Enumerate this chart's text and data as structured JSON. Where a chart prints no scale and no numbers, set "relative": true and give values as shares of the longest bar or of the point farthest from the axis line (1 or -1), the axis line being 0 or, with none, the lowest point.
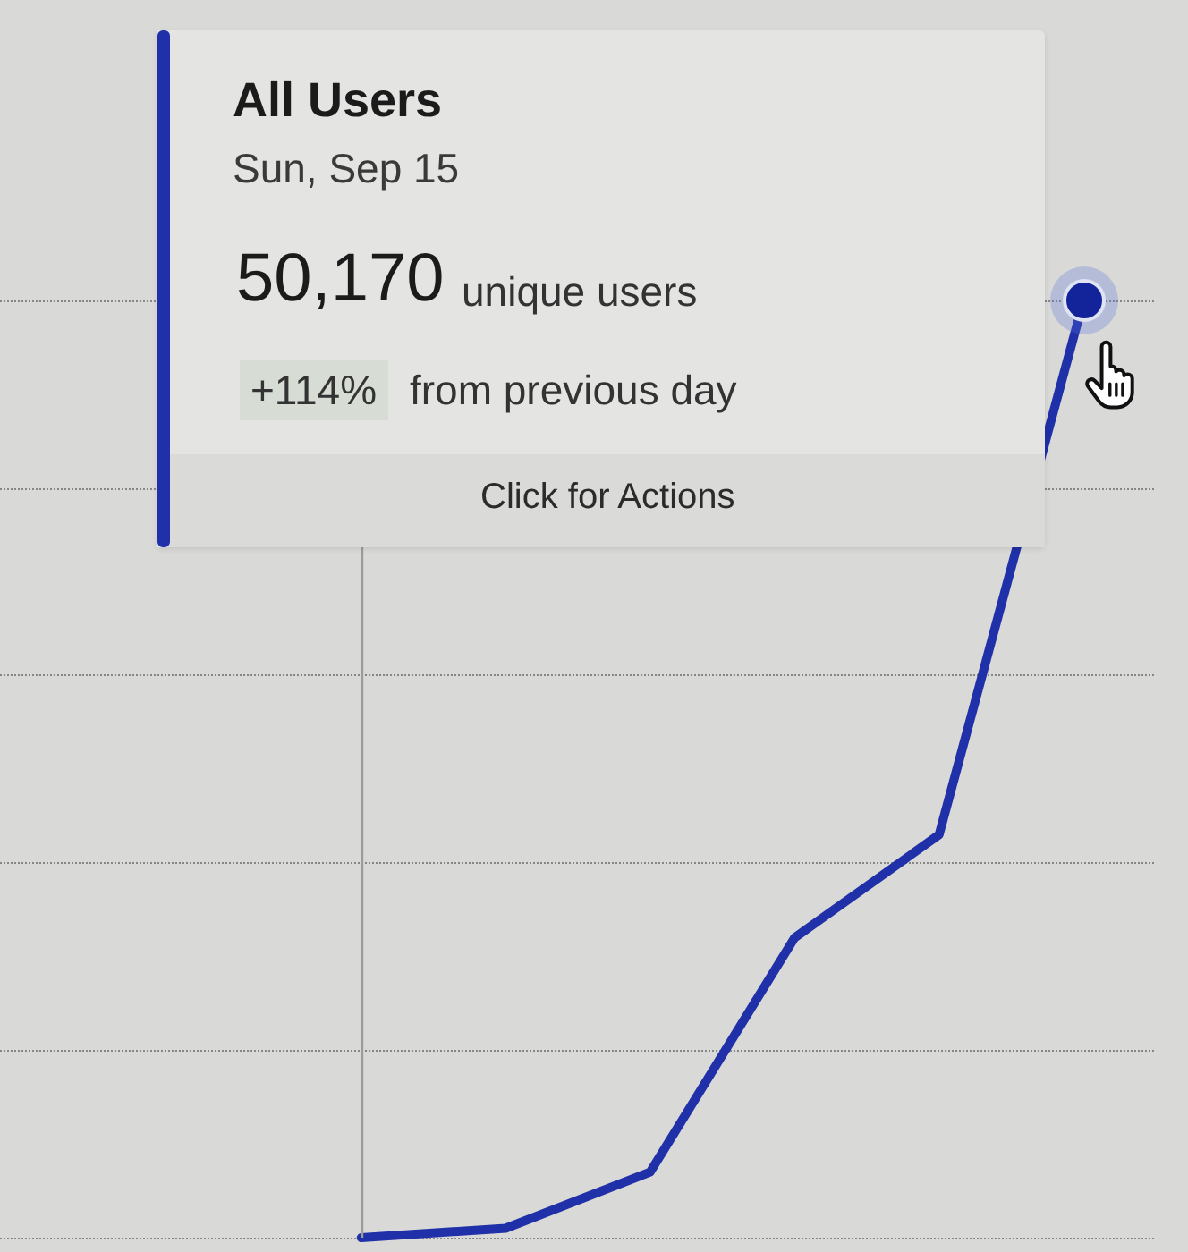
{
  "chart_data": {
    "type": "line",
    "categories": [
      null,
      null,
      null,
      null,
      null,
      null,
      null,
      null
    ],
    "series": [
      {
        "name": "All Users",
        "color": "#1f30a8",
        "values": [
          null,
          null,
          0,
          0.01,
          0.07,
          0.32,
          0.43,
          1
        ]
      }
    ],
    "relative": true,
    "grid": "y",
    "marker": "none",
    "line_style": "solid",
    "annotations": [
      "Sun, Sep 15",
      "50,170",
      "unique users",
      "+114%",
      "from previous day",
      "Click for Actions"
    ]
  }
}
